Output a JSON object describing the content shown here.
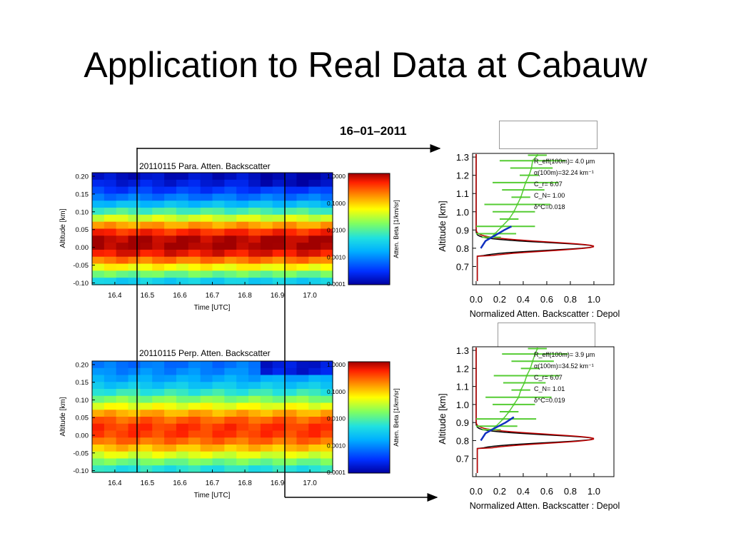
{
  "slide": {
    "title": "Application to Real Data at Cabauw",
    "date": "16–01–2011"
  },
  "colors": {
    "fit_line": "#c00000",
    "profile_line": "#000000",
    "depol_line": "#55cc33",
    "model_line": "#1030c0"
  },
  "chart_data": [
    {
      "type": "heatmap",
      "title": "20110115 Para. Atten. Backscatter",
      "xlabel": "Time [UTC]",
      "ylabel": "Altitude [km]",
      "x_ticks": [
        "16.4",
        "16.5",
        "16.6",
        "16.7",
        "16.8",
        "16.9",
        "17.0"
      ],
      "y_ticks": [
        "0.20",
        "0.15",
        "0.10",
        "0.05",
        "0.00",
        "-0.05",
        "-0.10"
      ],
      "xlim": [
        16.33,
        17.07
      ],
      "ylim": [
        -0.105,
        0.21
      ],
      "colorbar": {
        "label": "Atten. Beta [1/km/sr]",
        "ticks": [
          "1.0000",
          "0.1000",
          "0.0100",
          "0.0010",
          "0.0001"
        ],
        "scale": "log"
      },
      "peak_altitude": 0.01,
      "markers_x": [
        16.49,
        16.92
      ]
    },
    {
      "type": "heatmap",
      "title": "20110115 Perp. Atten. Backscatter",
      "xlabel": "Time [UTC]",
      "ylabel": "Altitude [km]",
      "x_ticks": [
        "16.4",
        "16.5",
        "16.6",
        "16.7",
        "16.8",
        "16.9",
        "17.0"
      ],
      "y_ticks": [
        "0.20",
        "0.15",
        "0.10",
        "0.05",
        "0.00",
        "-0.05",
        "-0.10"
      ],
      "xlim": [
        16.33,
        17.07
      ],
      "ylim": [
        -0.105,
        0.21
      ],
      "colorbar": {
        "label": "Atten. Beta [1/km/sr]",
        "ticks": [
          "1.0000",
          "0.1000",
          "0.0100",
          "0.0010",
          "0.0001"
        ],
        "scale": "log"
      },
      "peak_altitude": 0.015,
      "markers_x": [
        16.49,
        16.92
      ]
    },
    {
      "type": "line",
      "xlabel": "Normalized Atten. Backscatter : Depol",
      "ylabel": "Altitude [km]",
      "x_ticks": [
        "0.0",
        "0.2",
        "0.4",
        "0.6",
        "0.8",
        "1.0"
      ],
      "y_ticks": [
        "0.7",
        "0.8",
        "0.9",
        "1.0",
        "1.1",
        "1.2",
        "1.3"
      ],
      "xlim": [
        -0.03,
        1.17
      ],
      "ylim": [
        0.6,
        1.32
      ],
      "annotations": [
        "R_eff(100m)=  4.0 μm",
        "α(100m)=32.24 km⁻¹",
        "C_r= 6.07",
        "C_N= 1.00",
        "δ^C=0.018"
      ],
      "peak": {
        "altitude": 0.81,
        "value": 1.0,
        "width": 0.025
      },
      "depol_points": [
        [
          0.13,
          0.86
        ],
        [
          0.16,
          0.88
        ],
        [
          0.22,
          0.92
        ],
        [
          0.28,
          0.96
        ],
        [
          0.32,
          1.0
        ],
        [
          0.35,
          1.04
        ],
        [
          0.38,
          1.08
        ],
        [
          0.4,
          1.12
        ],
        [
          0.42,
          1.16
        ],
        [
          0.45,
          1.2
        ],
        [
          0.47,
          1.24
        ],
        [
          0.48,
          1.28
        ],
        [
          0.52,
          1.31
        ]
      ],
      "model_points": [
        [
          0.04,
          0.8
        ],
        [
          0.08,
          0.84
        ],
        [
          0.16,
          0.87
        ],
        [
          0.24,
          0.9
        ],
        [
          0.3,
          0.92
        ]
      ]
    },
    {
      "type": "line",
      "xlabel": "Normalized Atten. Backscatter : Depol",
      "ylabel": "Altitude [km]",
      "x_ticks": [
        "0.0",
        "0.2",
        "0.4",
        "0.6",
        "0.8",
        "1.0"
      ],
      "y_ticks": [
        "0.7",
        "0.8",
        "0.9",
        "1.0",
        "1.1",
        "1.2",
        "1.3"
      ],
      "xlim": [
        -0.03,
        1.17
      ],
      "ylim": [
        0.6,
        1.32
      ],
      "annotations": [
        "R_eff(100m)=  3.9 μm",
        "α(100m)=34.52 km⁻¹",
        "C_r= 6.07",
        "C_N= 1.01",
        "δ^C=0.019"
      ],
      "peak": {
        "altitude": 0.81,
        "value": 1.0,
        "width": 0.025
      },
      "depol_points": [
        [
          0.13,
          0.86
        ],
        [
          0.17,
          0.88
        ],
        [
          0.23,
          0.92
        ],
        [
          0.28,
          0.96
        ],
        [
          0.32,
          1.0
        ],
        [
          0.36,
          1.04
        ],
        [
          0.38,
          1.08
        ],
        [
          0.41,
          1.12
        ],
        [
          0.43,
          1.16
        ],
        [
          0.46,
          1.2
        ],
        [
          0.48,
          1.24
        ],
        [
          0.5,
          1.28
        ],
        [
          0.52,
          1.31
        ]
      ],
      "model_points": [
        [
          0.04,
          0.8
        ],
        [
          0.08,
          0.84
        ],
        [
          0.16,
          0.87
        ],
        [
          0.25,
          0.9
        ],
        [
          0.32,
          0.93
        ]
      ]
    }
  ]
}
